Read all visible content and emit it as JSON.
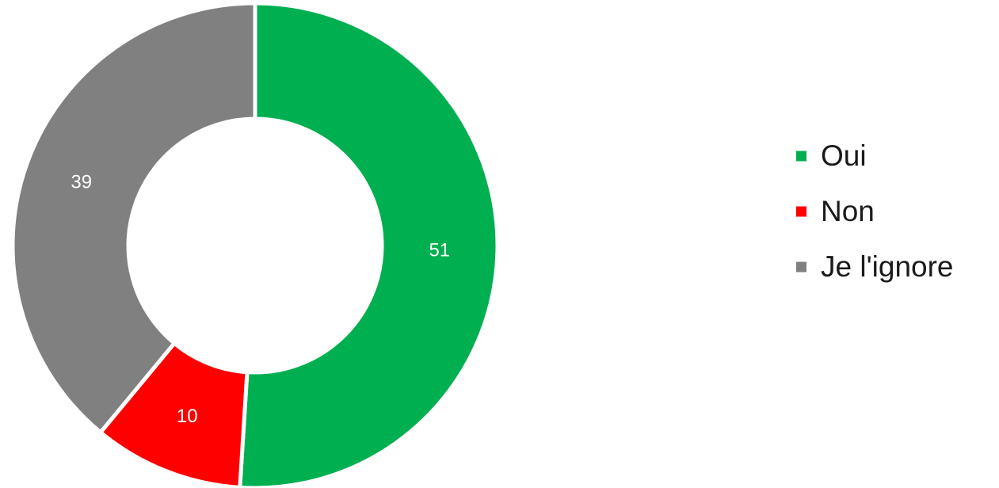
{
  "chart_data": {
    "type": "pie",
    "variant": "donut",
    "categories": [
      "Oui",
      "Non",
      "Je l'ignore"
    ],
    "values": [
      51,
      10,
      39
    ],
    "data_labels": [
      "51",
      "10",
      "39"
    ],
    "colors": [
      "#00AF50",
      "#FF0000",
      "#808080"
    ],
    "legend": {
      "position": "right",
      "entries": [
        "Oui",
        "Non",
        "Je l'ignore"
      ]
    },
    "title": ""
  }
}
